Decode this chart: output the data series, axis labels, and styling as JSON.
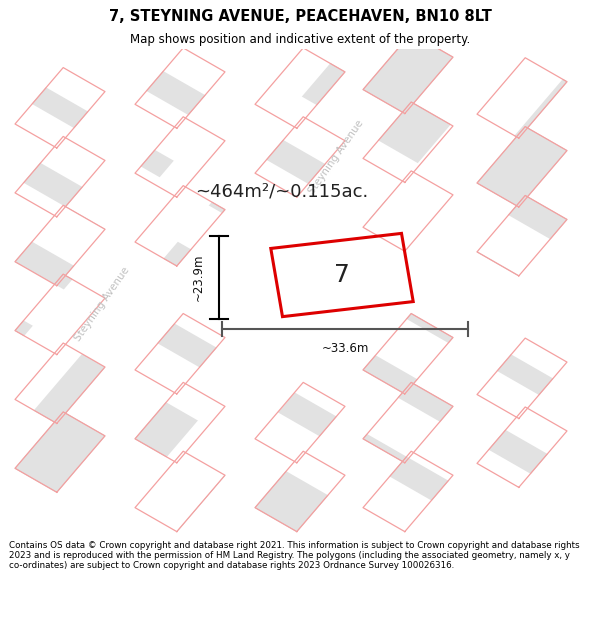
{
  "title": "7, STEYNING AVENUE, PEACEHAVEN, BN10 8LT",
  "subtitle": "Map shows position and indicative extent of the property.",
  "footer": "Contains OS data © Crown copyright and database right 2021. This information is subject to Crown copyright and database rights 2023 and is reproduced with the permission of HM Land Registry. The polygons (including the associated geometry, namely x, y co-ordinates) are subject to Crown copyright and database rights 2023 Ordnance Survey 100026316.",
  "map_bg": "#f0f0f0",
  "block_color": "#e2e2e2",
  "block_edge_color": "#c8c8c8",
  "road_color": "#ffffff",
  "red_line_color": "#dd0000",
  "pink_line_color": "#f4a0a0",
  "street_label_color": "#c0c0c0",
  "area_text": "~464m²/~0.115ac.",
  "width_label": "~33.6m",
  "height_label": "~23.9m",
  "house_number": "7"
}
